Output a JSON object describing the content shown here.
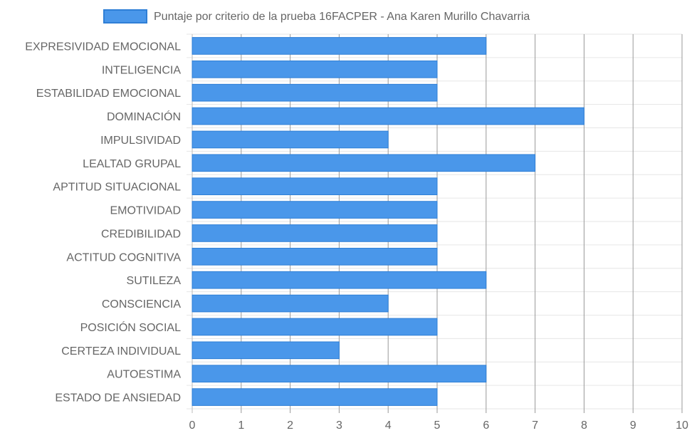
{
  "chart_data": {
    "type": "bar",
    "orientation": "horizontal",
    "legend_position": "top",
    "grid": true,
    "categories": [
      "EXPRESIVIDAD EMOCIONAL",
      "INTELIGENCIA",
      "ESTABILIDAD EMOCIONAL",
      "DOMINACIÓN",
      "IMPULSIVIDAD",
      "LEALTAD GRUPAL",
      "APTITUD SITUACIONAL",
      "EMOTIVIDAD",
      "CREDIBILIDAD",
      "ACTITUD COGNITIVA",
      "SUTILEZA",
      "CONSCIENCIA",
      "POSICIÓN SOCIAL",
      "CERTEZA INDIVIDUAL",
      "AUTOESTIMA",
      "ESTADO DE ANSIEDAD"
    ],
    "series": [
      {
        "name": "Puntaje por criterio de la prueba 16FACPER - Ana Karen Murillo Chavarria",
        "values": [
          6,
          5,
          5,
          8,
          4,
          7,
          5,
          5,
          5,
          5,
          6,
          4,
          5,
          3,
          6,
          5
        ],
        "color": "#4a97ea",
        "border_color": "#2f7fd6"
      }
    ],
    "xlim": [
      0,
      10
    ],
    "xticks": [
      "0",
      "1",
      "2",
      "3",
      "4",
      "5",
      "6",
      "7",
      "8",
      "9",
      "10"
    ]
  }
}
